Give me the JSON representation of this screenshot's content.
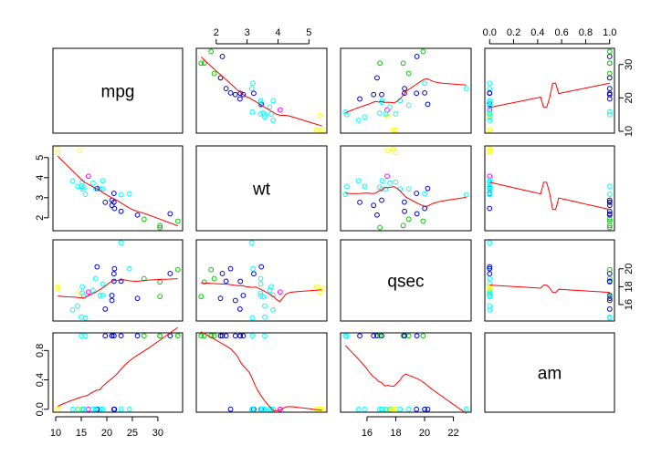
{
  "chart_data": {
    "type": "scatter",
    "subtype": "pairs",
    "variables": [
      "mpg",
      "wt",
      "qsec",
      "am"
    ],
    "ranges": {
      "mpg": [
        10.4,
        33.9
      ],
      "wt": [
        1.513,
        5.424
      ],
      "qsec": [
        14.5,
        22.9
      ],
      "am": [
        0,
        1
      ]
    },
    "ticks": {
      "mpg": {
        "values": [
          10,
          15,
          20,
          25,
          30
        ],
        "labels": [
          "10",
          "15",
          "20",
          "25",
          "30"
        ]
      },
      "wt": {
        "values": [
          2,
          3,
          4,
          5
        ],
        "labels": [
          "2",
          "3",
          "4",
          "5"
        ]
      },
      "qsec": {
        "values": [
          16,
          18,
          20,
          22
        ],
        "labels": [
          "16",
          "18",
          "20",
          "22"
        ]
      },
      "am": {
        "values": [
          0,
          0.2,
          0.4,
          0.6,
          0.8,
          1.0
        ],
        "labels": [
          "0.0",
          "0.2",
          "0.4",
          "0.6",
          "0.8",
          "1.0"
        ]
      }
    },
    "axis_ticks_left": {
      "wt": {
        "values": [
          2,
          3,
          4,
          5
        ],
        "labels": [
          "2",
          "3",
          "4",
          "5"
        ]
      },
      "am": {
        "values": [
          0,
          0.4,
          0.8
        ],
        "labels": [
          "0.0",
          "0.4",
          "0.8"
        ]
      }
    },
    "axis_ticks_right": {
      "mpg": {
        "values": [
          10,
          20,
          30
        ],
        "labels": [
          "10",
          "20",
          "30"
        ]
      },
      "qsec": {
        "values": [
          16,
          18,
          20
        ],
        "labels": [
          "16",
          "18",
          "20"
        ]
      }
    },
    "point_colors": [
      "#0000cd",
      "#00cd00",
      "#00ffff",
      "#ff00ff",
      "#ffff00"
    ],
    "smooth_color": "#ff0000",
    "grid": false,
    "legend": "none",
    "points": [
      {
        "mpg": 21.0,
        "wt": 2.62,
        "qsec": 16.46,
        "am": 1,
        "color": 0
      },
      {
        "mpg": 21.0,
        "wt": 2.875,
        "qsec": 17.02,
        "am": 1,
        "color": 0
      },
      {
        "mpg": 22.8,
        "wt": 2.32,
        "qsec": 18.61,
        "am": 1,
        "color": 0
      },
      {
        "mpg": 21.4,
        "wt": 3.215,
        "qsec": 19.44,
        "am": 0,
        "color": 0
      },
      {
        "mpg": 18.7,
        "wt": 3.44,
        "qsec": 17.02,
        "am": 0,
        "color": 2
      },
      {
        "mpg": 18.1,
        "wt": 3.46,
        "qsec": 20.22,
        "am": 0,
        "color": 0
      },
      {
        "mpg": 14.3,
        "wt": 3.57,
        "qsec": 15.84,
        "am": 0,
        "color": 2
      },
      {
        "mpg": 24.4,
        "wt": 3.19,
        "qsec": 20.0,
        "am": 0,
        "color": 2
      },
      {
        "mpg": 22.8,
        "wt": 3.15,
        "qsec": 22.9,
        "am": 0,
        "color": 2
      },
      {
        "mpg": 19.2,
        "wt": 3.44,
        "qsec": 18.3,
        "am": 0,
        "color": 2
      },
      {
        "mpg": 17.8,
        "wt": 3.44,
        "qsec": 18.9,
        "am": 0,
        "color": 2
      },
      {
        "mpg": 16.4,
        "wt": 4.07,
        "qsec": 17.4,
        "am": 0,
        "color": 3
      },
      {
        "mpg": 17.3,
        "wt": 3.73,
        "qsec": 17.6,
        "am": 0,
        "color": 2
      },
      {
        "mpg": 15.2,
        "wt": 3.78,
        "qsec": 18.0,
        "am": 0,
        "color": 2
      },
      {
        "mpg": 10.4,
        "wt": 5.25,
        "qsec": 17.98,
        "am": 0,
        "color": 4
      },
      {
        "mpg": 10.4,
        "wt": 5.424,
        "qsec": 17.82,
        "am": 0,
        "color": 4
      },
      {
        "mpg": 14.7,
        "wt": 5.345,
        "qsec": 17.42,
        "am": 0,
        "color": 4
      },
      {
        "mpg": 32.4,
        "wt": 2.2,
        "qsec": 19.47,
        "am": 1,
        "color": 0
      },
      {
        "mpg": 30.4,
        "wt": 1.615,
        "qsec": 18.52,
        "am": 1,
        "color": 1
      },
      {
        "mpg": 33.9,
        "wt": 1.835,
        "qsec": 19.9,
        "am": 1,
        "color": 1
      },
      {
        "mpg": 21.5,
        "wt": 2.465,
        "qsec": 20.01,
        "am": 0,
        "color": 0
      },
      {
        "mpg": 15.5,
        "wt": 3.52,
        "qsec": 16.87,
        "am": 0,
        "color": 2
      },
      {
        "mpg": 15.2,
        "wt": 3.435,
        "qsec": 17.3,
        "am": 0,
        "color": 2
      },
      {
        "mpg": 13.3,
        "wt": 3.84,
        "qsec": 15.41,
        "am": 0,
        "color": 2
      },
      {
        "mpg": 19.2,
        "wt": 3.845,
        "qsec": 17.05,
        "am": 0,
        "color": 2
      },
      {
        "mpg": 27.3,
        "wt": 1.935,
        "qsec": 18.9,
        "am": 1,
        "color": 1
      },
      {
        "mpg": 26.0,
        "wt": 2.14,
        "qsec": 16.7,
        "am": 1,
        "color": 0
      },
      {
        "mpg": 30.4,
        "wt": 1.513,
        "qsec": 16.9,
        "am": 1,
        "color": 1
      },
      {
        "mpg": 15.8,
        "wt": 3.17,
        "qsec": 14.5,
        "am": 1,
        "color": 2
      },
      {
        "mpg": 19.7,
        "wt": 2.77,
        "qsec": 15.5,
        "am": 1,
        "color": 0
      },
      {
        "mpg": 15.0,
        "wt": 3.57,
        "qsec": 14.6,
        "am": 1,
        "color": 2
      },
      {
        "mpg": 21.4,
        "wt": 2.78,
        "qsec": 18.6,
        "am": 1,
        "color": 0
      }
    ]
  }
}
